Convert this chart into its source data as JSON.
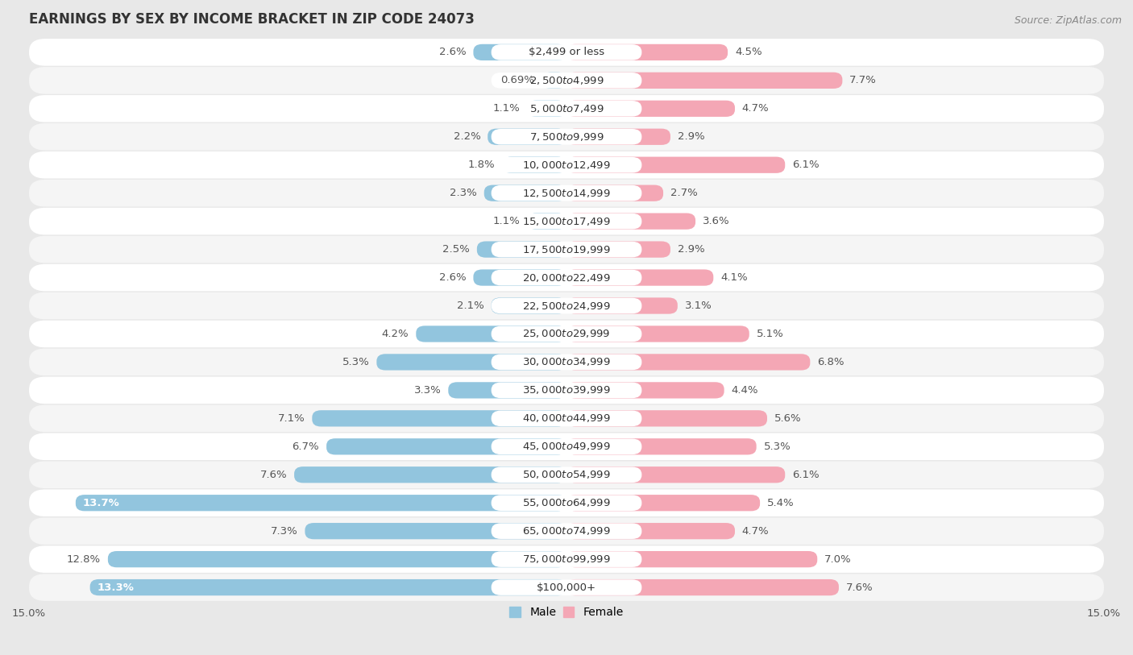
{
  "title": "EARNINGS BY SEX BY INCOME BRACKET IN ZIP CODE 24073",
  "source": "Source: ZipAtlas.com",
  "categories": [
    "$2,499 or less",
    "$2,500 to $4,999",
    "$5,000 to $7,499",
    "$7,500 to $9,999",
    "$10,000 to $12,499",
    "$12,500 to $14,999",
    "$15,000 to $17,499",
    "$17,500 to $19,999",
    "$20,000 to $22,499",
    "$22,500 to $24,999",
    "$25,000 to $29,999",
    "$30,000 to $34,999",
    "$35,000 to $39,999",
    "$40,000 to $44,999",
    "$45,000 to $49,999",
    "$50,000 to $54,999",
    "$55,000 to $64,999",
    "$65,000 to $74,999",
    "$75,000 to $99,999",
    "$100,000+"
  ],
  "male_values": [
    2.6,
    0.69,
    1.1,
    2.2,
    1.8,
    2.3,
    1.1,
    2.5,
    2.6,
    2.1,
    4.2,
    5.3,
    3.3,
    7.1,
    6.7,
    7.6,
    13.7,
    7.3,
    12.8,
    13.3
  ],
  "female_values": [
    4.5,
    7.7,
    4.7,
    2.9,
    6.1,
    2.7,
    3.6,
    2.9,
    4.1,
    3.1,
    5.1,
    6.8,
    4.4,
    5.6,
    5.3,
    6.1,
    5.4,
    4.7,
    7.0,
    7.6
  ],
  "male_color": "#92c5de",
  "female_color": "#f4a7b5",
  "male_label": "Male",
  "female_label": "Female",
  "xlim": 15.0,
  "bg_color": "#e8e8e8",
  "row_bg_color": "#f5f5f5",
  "pill_color": "#ffffff",
  "title_fontsize": 12,
  "source_fontsize": 9,
  "label_fontsize": 9.5,
  "cat_fontsize": 9.5,
  "tick_fontsize": 9.5,
  "bar_height": 0.58
}
